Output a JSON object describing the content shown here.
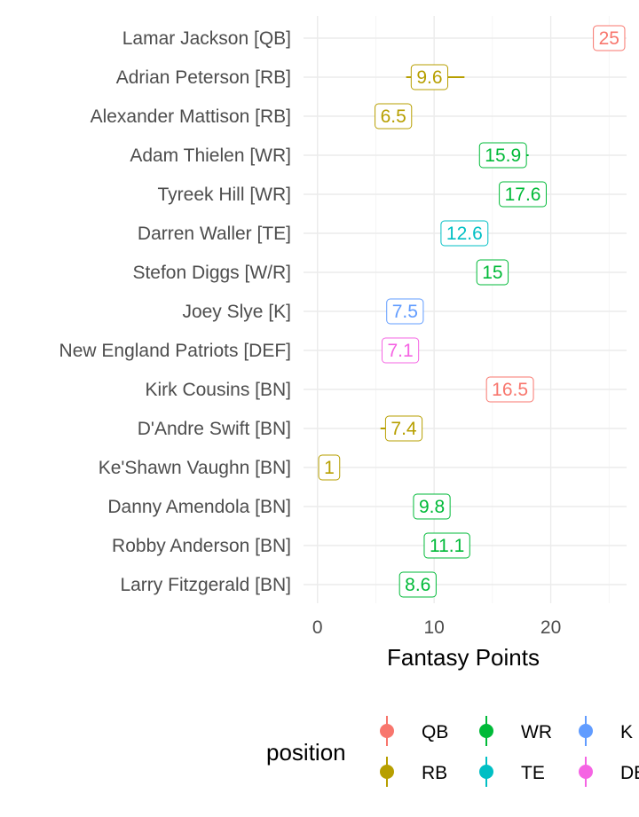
{
  "chart_data": {
    "type": "scatter",
    "title": "",
    "xlabel": "Fantasy Points",
    "ylabel": "",
    "xlim": [
      -1.2,
      26.5
    ],
    "x_ticks": [
      0,
      10,
      20
    ],
    "grid": true,
    "legend_placement": "bottom",
    "legend_title": "position",
    "colors": {
      "QB": "#F8766D",
      "RB": "#B79F00",
      "WR": "#00BA38",
      "TE": "#00BFC4",
      "K": "#619CFF",
      "DEF": "#F564E3"
    },
    "legend": [
      {
        "key": "QB",
        "label": "QB"
      },
      {
        "key": "RB",
        "label": "RB"
      },
      {
        "key": "WR",
        "label": "WR"
      },
      {
        "key": "TE",
        "label": "TE"
      },
      {
        "key": "K",
        "label": "K"
      },
      {
        "key": "DEF",
        "label": "DEF"
      }
    ],
    "points": [
      {
        "player": "Lamar Jackson [QB]",
        "position": "QB",
        "value": 25,
        "label": "25",
        "low": 25,
        "high": 25
      },
      {
        "player": "Adrian Peterson [RB]",
        "position": "RB",
        "value": 9.6,
        "label": "9.6",
        "low": 7.6,
        "high": 12.6
      },
      {
        "player": "Alexander Mattison [RB]",
        "position": "RB",
        "value": 6.5,
        "label": "6.5",
        "low": 6.5,
        "high": 6.5
      },
      {
        "player": "Adam Thielen [WR]",
        "position": "WR",
        "value": 15.9,
        "label": "15.9",
        "low": 15.9,
        "high": 18.1
      },
      {
        "player": "Tyreek Hill [WR]",
        "position": "WR",
        "value": 17.6,
        "label": "17.6",
        "low": 17.6,
        "high": 17.6
      },
      {
        "player": "Darren Waller [TE]",
        "position": "TE",
        "value": 12.6,
        "label": "12.6",
        "low": 12.6,
        "high": 12.6
      },
      {
        "player": "Stefon Diggs [W/R]",
        "position": "WR",
        "value": 15,
        "label": "15",
        "low": 15,
        "high": 15
      },
      {
        "player": "Joey Slye [K]",
        "position": "K",
        "value": 7.5,
        "label": "7.5",
        "low": 7.5,
        "high": 7.5
      },
      {
        "player": "New England Patriots [DEF]",
        "position": "DEF",
        "value": 7.1,
        "label": "7.1",
        "low": 7.1,
        "high": 7.1
      },
      {
        "player": "Kirk Cousins [BN]",
        "position": "QB",
        "value": 16.5,
        "label": "16.5",
        "low": 16.5,
        "high": 16.5
      },
      {
        "player": "D'Andre Swift [BN]",
        "position": "RB",
        "value": 7.4,
        "label": "7.4",
        "low": 5.4,
        "high": 7.4
      },
      {
        "player": "Ke'Shawn Vaughn [BN]",
        "position": "RB",
        "value": 1,
        "label": "1",
        "low": 1,
        "high": 1
      },
      {
        "player": "Danny Amendola [BN]",
        "position": "WR",
        "value": 9.8,
        "label": "9.8",
        "low": 9.8,
        "high": 9.8
      },
      {
        "player": "Robby Anderson [BN]",
        "position": "WR",
        "value": 11.1,
        "label": "11.1",
        "low": 11.1,
        "high": 11.1
      },
      {
        "player": "Larry Fitzgerald [BN]",
        "position": "WR",
        "value": 8.6,
        "label": "8.6",
        "low": 8.6,
        "high": 8.6
      }
    ]
  }
}
